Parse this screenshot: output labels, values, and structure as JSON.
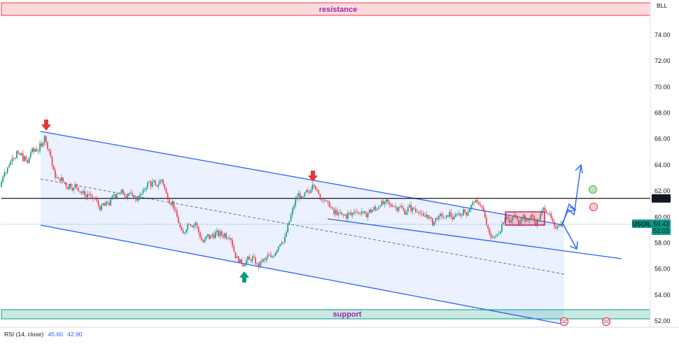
{
  "currency_label": "BLL",
  "chart_data": {
    "type": "candlestick",
    "y_axis": {
      "ticks": [
        "74.00",
        "72.00",
        "70.00",
        "68.00",
        "66.00",
        "64.00",
        "62.00",
        "60.00",
        "58.00",
        "56.00",
        "54.00",
        "52.00"
      ],
      "range": [
        51.5,
        76.5
      ]
    },
    "zones": {
      "resistance": {
        "label": "resistance",
        "from": 75.6,
        "to": 76.6,
        "color": "#f23645"
      },
      "support": {
        "label": "support",
        "from": 52.3,
        "to": 53.0,
        "color": "#089981"
      }
    },
    "horizontal_line": {
      "price": 61.43,
      "label": "61.43"
    },
    "current_price": {
      "symbol": "USOIL",
      "price": "59.43",
      "countdown": "52:03"
    },
    "close_series": [
      [
        0,
        62.3
      ],
      [
        3,
        62.9
      ],
      [
        6,
        63.6
      ],
      [
        9,
        63.4
      ],
      [
        12,
        64.0
      ],
      [
        15,
        64.2
      ],
      [
        18,
        64.8
      ],
      [
        21,
        64.5
      ],
      [
        24,
        65.0
      ],
      [
        27,
        64.6
      ],
      [
        30,
        64.9
      ],
      [
        33,
        64.4
      ],
      [
        36,
        64.6
      ],
      [
        39,
        64.0
      ],
      [
        42,
        64.7
      ],
      [
        45,
        65.2
      ],
      [
        48,
        65.0
      ],
      [
        51,
        65.3
      ],
      [
        54,
        65.0
      ],
      [
        57,
        65.5
      ],
      [
        60,
        65.3
      ],
      [
        63,
        66.5
      ],
      [
        66,
        65.6
      ],
      [
        69,
        65.3
      ],
      [
        72,
        64.8
      ],
      [
        75,
        63.8
      ],
      [
        78,
        63.2
      ],
      [
        81,
        63.0
      ],
      [
        84,
        62.8
      ],
      [
        87,
        63.0
      ],
      [
        90,
        62.7
      ],
      [
        93,
        62.6
      ],
      [
        96,
        62.2
      ],
      [
        99,
        62.5
      ],
      [
        102,
        62.3
      ],
      [
        105,
        62.1
      ],
      [
        108,
        62.5
      ],
      [
        111,
        62.2
      ],
      [
        114,
        62.0
      ],
      [
        117,
        61.8
      ],
      [
        120,
        61.9
      ],
      [
        123,
        61.5
      ],
      [
        126,
        61.9
      ],
      [
        129,
        61.6
      ],
      [
        132,
        61.3
      ],
      [
        135,
        61.5
      ],
      [
        138,
        61.2
      ],
      [
        141,
        60.8
      ],
      [
        144,
        60.6
      ],
      [
        147,
        61.0
      ],
      [
        150,
        60.8
      ],
      [
        153,
        61.2
      ],
      [
        156,
        61.0
      ],
      [
        159,
        61.3
      ],
      [
        162,
        61.8
      ],
      [
        165,
        61.6
      ],
      [
        168,
        62.0
      ],
      [
        171,
        61.7
      ],
      [
        174,
        62.0
      ],
      [
        177,
        61.8
      ],
      [
        180,
        61.6
      ],
      [
        183,
        61.9
      ],
      [
        186,
        61.8
      ],
      [
        189,
        61.5
      ],
      [
        192,
        61.6
      ],
      [
        195,
        61.3
      ],
      [
        198,
        61.5
      ],
      [
        201,
        61.7
      ],
      [
        204,
        61.9
      ],
      [
        207,
        62.2
      ],
      [
        210,
        62.5
      ],
      [
        213,
        62.7
      ],
      [
        216,
        62.4
      ],
      [
        219,
        62.8
      ],
      [
        222,
        62.3
      ],
      [
        225,
        62.5
      ],
      [
        228,
        62.7
      ],
      [
        231,
        62.9
      ],
      [
        234,
        62.4
      ],
      [
        237,
        61.8
      ],
      [
        240,
        61.5
      ],
      [
        243,
        61.0
      ],
      [
        246,
        61.2
      ],
      [
        249,
        60.6
      ],
      [
        252,
        60.1
      ],
      [
        255,
        59.6
      ],
      [
        258,
        59.0
      ],
      [
        261,
        58.6
      ],
      [
        264,
        58.9
      ],
      [
        267,
        59.3
      ],
      [
        270,
        59.6
      ],
      [
        273,
        59.4
      ],
      [
        276,
        59.3
      ],
      [
        279,
        59.6
      ],
      [
        282,
        59.1
      ],
      [
        285,
        58.6
      ],
      [
        288,
        58.2
      ],
      [
        291,
        58.0
      ],
      [
        294,
        58.4
      ],
      [
        297,
        58.6
      ],
      [
        300,
        58.3
      ],
      [
        303,
        58.7
      ],
      [
        306,
        58.5
      ],
      [
        309,
        58.9
      ],
      [
        312,
        58.6
      ],
      [
        315,
        58.8
      ],
      [
        318,
        58.5
      ],
      [
        321,
        58.7
      ],
      [
        324,
        58.4
      ],
      [
        327,
        58.6
      ],
      [
        330,
        58.3
      ],
      [
        333,
        57.6
      ],
      [
        336,
        57.0
      ],
      [
        339,
        56.8
      ],
      [
        342,
        56.6
      ],
      [
        345,
        56.5
      ],
      [
        348,
        56.3
      ],
      [
        351,
        56.6
      ],
      [
        354,
        56.8
      ],
      [
        357,
        56.6
      ],
      [
        360,
        56.9
      ],
      [
        363,
        56.7
      ],
      [
        366,
        56.4
      ],
      [
        369,
        56.2
      ],
      [
        372,
        56.5
      ],
      [
        375,
        56.7
      ],
      [
        378,
        56.6
      ],
      [
        381,
        56.9
      ],
      [
        384,
        57.1
      ],
      [
        387,
        56.8
      ],
      [
        390,
        57.0
      ],
      [
        393,
        57.3
      ],
      [
        396,
        57.6
      ],
      [
        399,
        57.9
      ],
      [
        402,
        58.2
      ],
      [
        405,
        58.0
      ],
      [
        408,
        58.6
      ],
      [
        411,
        59.2
      ],
      [
        414,
        59.8
      ],
      [
        417,
        60.4
      ],
      [
        420,
        60.9
      ],
      [
        423,
        61.4
      ],
      [
        426,
        61.8
      ],
      [
        429,
        61.6
      ],
      [
        432,
        61.3
      ],
      [
        435,
        61.7
      ],
      [
        438,
        62.0
      ],
      [
        441,
        61.7
      ],
      [
        444,
        62.2
      ],
      [
        447,
        62.7
      ],
      [
        450,
        62.4
      ],
      [
        453,
        61.9
      ],
      [
        456,
        61.6
      ],
      [
        459,
        61.3
      ],
      [
        462,
        61.5
      ],
      [
        465,
        61.2
      ],
      [
        468,
        61.0
      ],
      [
        471,
        60.9
      ],
      [
        474,
        60.6
      ],
      [
        477,
        60.2
      ],
      [
        480,
        60.5
      ],
      [
        483,
        60.1
      ],
      [
        486,
        60.3
      ],
      [
        489,
        60.0
      ],
      [
        492,
        60.2
      ],
      [
        495,
        60.0
      ],
      [
        498,
        60.4
      ],
      [
        501,
        60.1
      ],
      [
        504,
        60.3
      ],
      [
        507,
        60.6
      ],
      [
        510,
        60.4
      ],
      [
        513,
        60.2
      ],
      [
        516,
        60.5
      ],
      [
        519,
        60.3
      ],
      [
        522,
        60.0
      ],
      [
        525,
        60.3
      ],
      [
        528,
        60.5
      ],
      [
        531,
        60.4
      ],
      [
        534,
        60.7
      ],
      [
        537,
        60.5
      ],
      [
        540,
        60.8
      ],
      [
        543,
        61.0
      ],
      [
        546,
        61.1
      ],
      [
        549,
        60.9
      ],
      [
        552,
        61.2
      ],
      [
        555,
        61.0
      ],
      [
        558,
        60.8
      ],
      [
        561,
        61.0
      ],
      [
        564,
        60.8
      ],
      [
        567,
        60.6
      ],
      [
        570,
        60.9
      ],
      [
        573,
        60.7
      ],
      [
        576,
        60.5
      ],
      [
        579,
        60.3
      ],
      [
        582,
        60.6
      ],
      [
        585,
        60.8
      ],
      [
        588,
        60.5
      ],
      [
        591,
        60.7
      ],
      [
        594,
        60.4
      ],
      [
        597,
        60.6
      ],
      [
        600,
        60.3
      ],
      [
        603,
        60.1
      ],
      [
        606,
        59.9
      ],
      [
        609,
        60.2
      ],
      [
        612,
        60.0
      ],
      [
        615,
        59.8
      ],
      [
        618,
        59.5
      ],
      [
        621,
        59.7
      ],
      [
        624,
        60.0
      ],
      [
        627,
        59.9
      ],
      [
        630,
        60.2
      ],
      [
        633,
        60.0
      ],
      [
        636,
        59.8
      ],
      [
        639,
        60.1
      ],
      [
        642,
        60.3
      ],
      [
        645,
        60.0
      ],
      [
        648,
        59.8
      ],
      [
        651,
        60.1
      ],
      [
        654,
        60.4
      ],
      [
        657,
        60.1
      ],
      [
        660,
        60.3
      ],
      [
        663,
        60.5
      ],
      [
        666,
        60.2
      ],
      [
        669,
        60.5
      ],
      [
        672,
        60.8
      ],
      [
        675,
        61.0
      ],
      [
        678,
        61.3
      ],
      [
        681,
        61.0
      ],
      [
        684,
        61.1
      ],
      [
        687,
        60.9
      ],
      [
        690,
        60.5
      ],
      [
        693,
        59.8
      ],
      [
        696,
        59.2
      ],
      [
        699,
        58.6
      ],
      [
        702,
        58.4
      ],
      [
        705,
        58.6
      ],
      [
        708,
        58.4
      ],
      [
        711,
        58.7
      ],
      [
        714,
        58.9
      ],
      [
        717,
        59.4
      ],
      [
        720,
        59.8
      ],
      [
        723,
        60.2
      ],
      [
        726,
        59.8
      ],
      [
        729,
        59.4
      ],
      [
        732,
        59.9
      ],
      [
        735,
        60.2
      ],
      [
        738,
        59.8
      ],
      [
        741,
        59.5
      ],
      [
        744,
        59.9
      ],
      [
        747,
        60.2
      ],
      [
        750,
        59.8
      ],
      [
        753,
        59.6
      ],
      [
        756,
        59.9
      ],
      [
        759,
        60.2
      ],
      [
        762,
        59.8
      ],
      [
        765,
        59.5
      ],
      [
        768,
        59.7
      ],
      [
        771,
        60.0
      ],
      [
        774,
        60.4
      ],
      [
        777,
        60.7
      ],
      [
        780,
        60.5
      ],
      [
        783,
        60.3
      ],
      [
        786,
        60.0
      ],
      [
        789,
        59.6
      ],
      [
        792,
        59.1
      ],
      [
        795,
        59.3
      ],
      [
        798,
        59.5
      ],
      [
        801,
        59.4
      ],
      [
        804,
        59.43
      ]
    ]
  }
}
